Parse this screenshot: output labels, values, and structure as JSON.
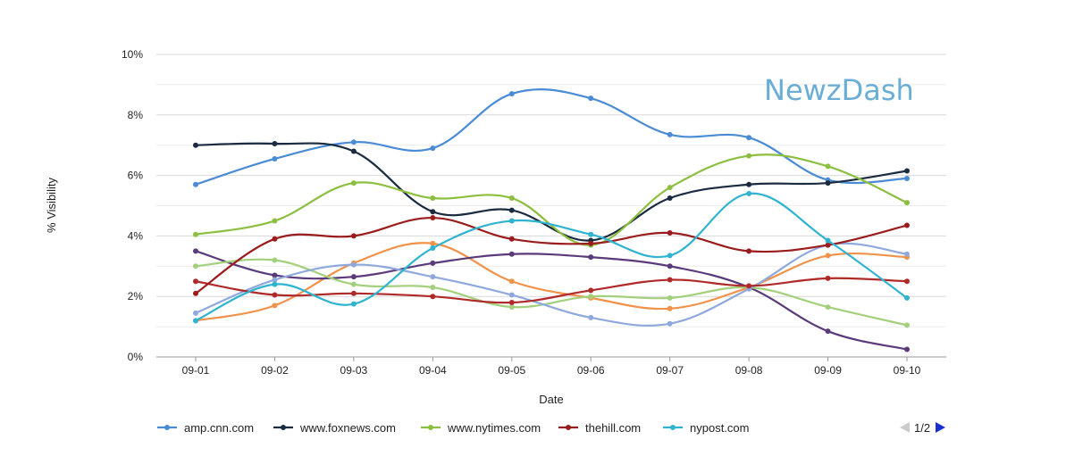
{
  "watermark": "NewzDash",
  "pager": {
    "label": "1/2"
  },
  "chart_data": {
    "type": "line",
    "xlabel": "Date",
    "ylabel": "% Visibility",
    "ylim": [
      0,
      10
    ],
    "yticks": [
      "0%",
      "2%",
      "4%",
      "6%",
      "8%",
      "10%"
    ],
    "grid": true,
    "smooth": true,
    "legend_position": "bottom",
    "categories": [
      "09-01",
      "09-02",
      "09-03",
      "09-04",
      "09-05",
      "09-06",
      "09-07",
      "09-08",
      "09-09",
      "09-10"
    ],
    "series": [
      {
        "name": "amp.cnn.com",
        "color": "#4a8bd6",
        "legend": true,
        "values": [
          5.7,
          6.55,
          7.1,
          6.9,
          8.7,
          8.55,
          7.35,
          7.25,
          5.85,
          5.9
        ]
      },
      {
        "name": "www.foxnews.com",
        "color": "#1b2b40",
        "legend": true,
        "values": [
          7.0,
          7.05,
          6.8,
          4.8,
          4.85,
          3.85,
          5.25,
          5.7,
          5.75,
          6.15
        ]
      },
      {
        "name": "www.nytimes.com",
        "color": "#8cbf3f",
        "legend": true,
        "values": [
          4.05,
          4.5,
          5.75,
          5.25,
          5.25,
          3.7,
          5.6,
          6.65,
          6.3,
          5.1
        ]
      },
      {
        "name": "thehill.com",
        "color": "#9b1c1c",
        "legend": true,
        "values": [
          2.1,
          3.9,
          4.0,
          4.6,
          3.9,
          3.75,
          4.1,
          3.5,
          3.7,
          4.35
        ]
      },
      {
        "name": "nypost.com",
        "color": "#2fb3cf",
        "legend": true,
        "values": [
          1.2,
          2.4,
          1.75,
          3.6,
          4.5,
          4.05,
          3.35,
          5.4,
          3.85,
          1.95
        ]
      },
      {
        "name": "",
        "color": "#f0924a",
        "legend": false,
        "values": [
          1.2,
          1.7,
          3.1,
          3.75,
          2.5,
          1.95,
          1.6,
          2.3,
          3.35,
          3.3
        ]
      },
      {
        "name": "",
        "color": "#5a3a7a",
        "legend": false,
        "values": [
          3.5,
          2.7,
          2.65,
          3.1,
          3.4,
          3.3,
          3.0,
          2.3,
          0.85,
          0.25
        ]
      },
      {
        "name": "",
        "color": "#a3d07c",
        "legend": false,
        "values": [
          3.0,
          3.2,
          2.4,
          2.3,
          1.65,
          2.0,
          1.95,
          2.3,
          1.65,
          1.05
        ]
      },
      {
        "name": "",
        "color": "#8fa9dc",
        "legend": false,
        "values": [
          1.45,
          2.55,
          3.05,
          2.65,
          2.05,
          1.3,
          1.1,
          2.25,
          3.7,
          3.4
        ]
      },
      {
        "name": "",
        "color": "#b02a2a",
        "legend": false,
        "values": [
          2.5,
          2.05,
          2.1,
          2.0,
          1.8,
          2.2,
          2.55,
          2.35,
          2.6,
          2.5
        ]
      }
    ]
  }
}
